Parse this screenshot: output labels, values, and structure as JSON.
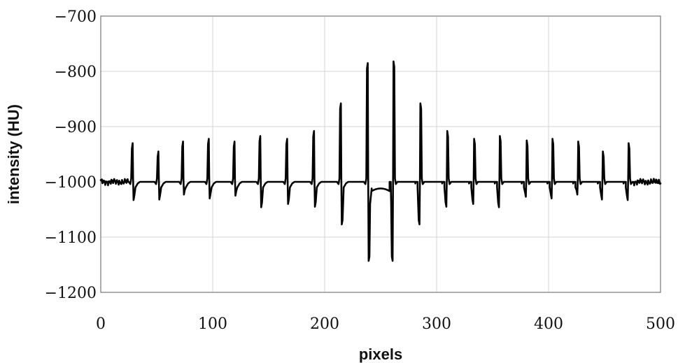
{
  "chart_data": {
    "type": "line",
    "title": "",
    "xlabel": "pixels",
    "ylabel": "intensity (HU)",
    "xlim": [
      0,
      500
    ],
    "ylim": [
      -1200,
      -700
    ],
    "grid": true,
    "legend": "none",
    "x_ticks": [
      0,
      100,
      200,
      300,
      400,
      500
    ],
    "x_tick_labels": [
      "0",
      "100",
      "200",
      "300",
      "400",
      "500"
    ],
    "y_ticks": [
      -700,
      -800,
      -900,
      -1000,
      -1100,
      -1200
    ],
    "y_tick_labels": [
      "−700",
      "−800",
      "−900",
      "−1000",
      "−1100",
      "−1200"
    ],
    "baseline": -1000,
    "edge_noise_range": [
      [
        0,
        24
      ],
      [
        476,
        500
      ]
    ],
    "spikes": [
      {
        "x": 28,
        "peak": -940,
        "trough": -1033
      },
      {
        "x": 51,
        "peak": -955,
        "trough": -1032
      },
      {
        "x": 73,
        "peak": -937,
        "trough": -1023
      },
      {
        "x": 96,
        "peak": -932,
        "trough": -1030
      },
      {
        "x": 119,
        "peak": -937,
        "trough": -1025
      },
      {
        "x": 142,
        "peak": -927,
        "trough": -1046
      },
      {
        "x": 166,
        "peak": -932,
        "trough": -1040
      },
      {
        "x": 190,
        "peak": -918,
        "trough": -1045
      },
      {
        "x": 214,
        "peak": -868,
        "trough": -1077
      },
      {
        "x": 238,
        "peak": -795,
        "trough": -1143
      },
      {
        "x": 262,
        "peak": -792,
        "trough": -1143
      },
      {
        "x": 286,
        "peak": -868,
        "trough": -1077
      },
      {
        "x": 310,
        "peak": -918,
        "trough": -1045
      },
      {
        "x": 334,
        "peak": -932,
        "trough": -1040
      },
      {
        "x": 357,
        "peak": -927,
        "trough": -1046
      },
      {
        "x": 381,
        "peak": -935,
        "trough": -1027
      },
      {
        "x": 404,
        "peak": -932,
        "trough": -1030
      },
      {
        "x": 427,
        "peak": -937,
        "trough": -1023
      },
      {
        "x": 449,
        "peak": -955,
        "trough": -1032
      },
      {
        "x": 472,
        "peak": -940,
        "trough": -1033
      }
    ],
    "center_plateau": {
      "x_range": [
        242,
        258
      ],
      "value": -1012
    }
  }
}
